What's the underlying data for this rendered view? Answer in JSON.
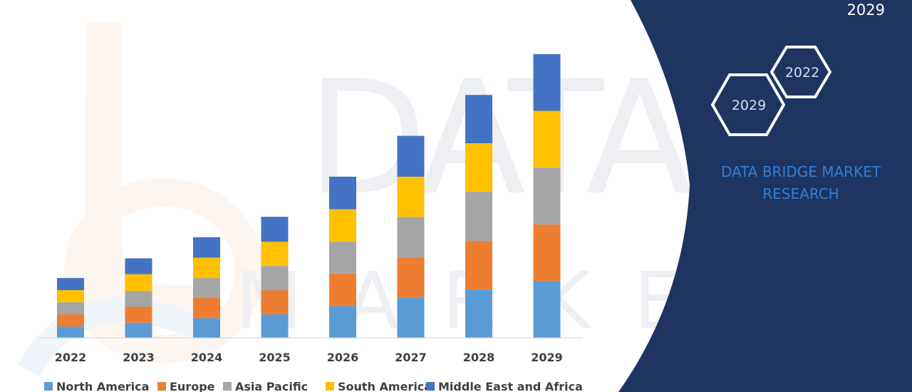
{
  "banner": {
    "year": "2029",
    "hex_years": [
      "2022",
      "2029"
    ],
    "brand_line1": "DATA BRIDGE MARKET",
    "brand_line2": "RESEARCH"
  },
  "colors": {
    "panel": "#1f3461",
    "North America": "#5b9bd5",
    "Europe": "#ed7d31",
    "Asia Pacific": "#a5a5a5",
    "South America": "#ffc000",
    "Middle East and Africa": "#4472c4"
  },
  "chart_data": {
    "type": "bar",
    "stacked": true,
    "categories": [
      "2022",
      "2023",
      "2024",
      "2025",
      "2026",
      "2027",
      "2028",
      "2029"
    ],
    "series": [
      {
        "name": "North America",
        "values": [
          15,
          20,
          26,
          31,
          42,
          53,
          64,
          75
        ]
      },
      {
        "name": "Europe",
        "values": [
          16,
          21,
          27,
          32,
          43,
          53,
          64,
          75
        ]
      },
      {
        "name": "Asia Pacific",
        "values": [
          16,
          21,
          26,
          32,
          42,
          54,
          65,
          75
        ]
      },
      {
        "name": "South America",
        "values": [
          16,
          22,
          27,
          32,
          43,
          53,
          64,
          75
        ]
      },
      {
        "name": "Middle East and Africa",
        "values": [
          16,
          21,
          27,
          33,
          43,
          54,
          64,
          75
        ]
      }
    ],
    "ylim": [
      0,
      390
    ],
    "grid": false,
    "legend_position": "bottom"
  }
}
